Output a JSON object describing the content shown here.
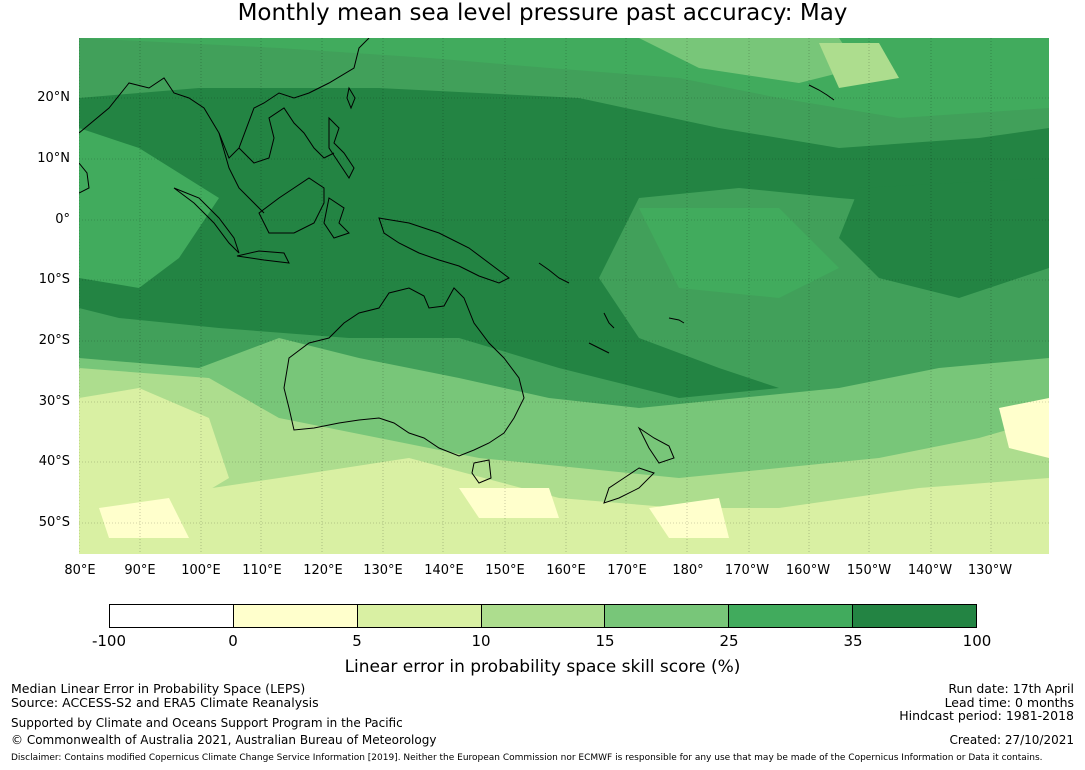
{
  "title": "Monthly mean sea level pressure past accuracy: May",
  "map": {
    "lat_labels": [
      "20°N",
      "10°N",
      "0°",
      "10°S",
      "20°S",
      "30°S",
      "40°S",
      "50°S"
    ],
    "lon_labels": [
      "80°E",
      "90°E",
      "100°E",
      "110°E",
      "120°E",
      "130°E",
      "140°E",
      "150°E",
      "160°E",
      "170°E",
      "180°",
      "170°W",
      "160°W",
      "150°W",
      "140°W",
      "130°W"
    ],
    "region_fill": {
      "tropics_north": "25-35",
      "equatorial_band": "35-100",
      "subtropics_south": "15-25",
      "mid_latitudes_south": "5-15"
    }
  },
  "colorbar": {
    "ticks": [
      "-100",
      "0",
      "5",
      "10",
      "15",
      "25",
      "35",
      "100"
    ],
    "colors": [
      "#ffffff",
      "#ffffcc",
      "#d9f0a3",
      "#addd8e",
      "#78c679",
      "#41ab5d",
      "#238443"
    ],
    "label": "Linear error in probability space skill score (%)"
  },
  "footer": {
    "left_1": "Median Linear Error in Probability Space (LEPS)",
    "left_2": "Source: ACCESS-S2 and ERA5 Climate Reanalysis",
    "left_3": "Supported by Climate and Oceans Support Program in the Pacific",
    "left_4": "© Commonwealth of Australia 2021, Australian Bureau of Meteorology",
    "right_1": "Run date: 17th April",
    "right_2": "Lead time: 0 months",
    "right_3": "Hindcast period: 1981-2018",
    "right_4": "Created: 27/10/2021",
    "disclaimer": "Disclaimer: Contains modified Copernicus Climate Change Service Information [2019]. Neither the European Commission nor ECMWF is responsible for any use that may be made of the Copernicus Information or Data it contains."
  }
}
